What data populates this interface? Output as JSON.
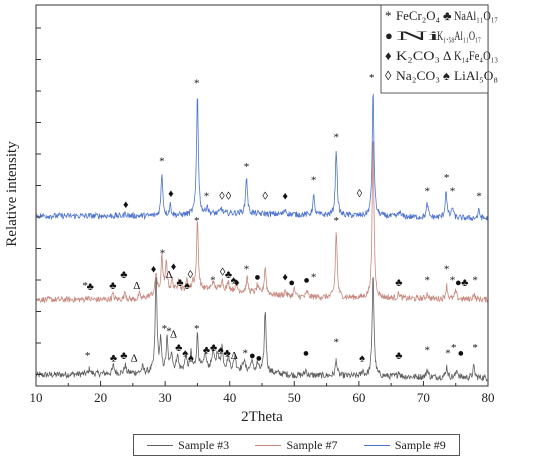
{
  "chart_data": {
    "type": "line",
    "xlabel": "2Theta",
    "ylabel": "Relative intensity",
    "xlim": [
      10,
      80
    ],
    "x_ticks": [
      10,
      20,
      30,
      40,
      50,
      60,
      70,
      80
    ],
    "y_ticks_shown": false,
    "grid": false,
    "series": [
      {
        "name": "Sample #3",
        "color": "#5f5f5f",
        "baseline": 0.05,
        "noise": 0.012,
        "background": [
          [
            10,
            0.04
          ],
          [
            28,
            0.05
          ],
          [
            38,
            0.07
          ],
          [
            50,
            0.04
          ],
          [
            80,
            0.03
          ]
        ],
        "peaks": [
          [
            18.3,
            0.02
          ],
          [
            22.0,
            0.03
          ],
          [
            23.8,
            0.03
          ],
          [
            26.5,
            0.02
          ],
          [
            28.6,
            0.36
          ],
          [
            29.3,
            0.11
          ],
          [
            30.3,
            0.12
          ],
          [
            31.0,
            0.07
          ],
          [
            31.9,
            0.06
          ],
          [
            33.2,
            0.05
          ],
          [
            34.0,
            0.06
          ],
          [
            35.0,
            0.13
          ],
          [
            36.2,
            0.06
          ],
          [
            37.4,
            0.07
          ],
          [
            38.1,
            0.06
          ],
          [
            38.8,
            0.08
          ],
          [
            39.8,
            0.05
          ],
          [
            40.8,
            0.05
          ],
          [
            42.2,
            0.04
          ],
          [
            43.4,
            0.04
          ],
          [
            44.3,
            0.03
          ],
          [
            45.5,
            0.23
          ],
          [
            51.8,
            0.02
          ],
          [
            56.5,
            0.06
          ],
          [
            60.6,
            0.02
          ],
          [
            62.2,
            0.39
          ],
          [
            66.2,
            0.02
          ],
          [
            70.6,
            0.03
          ],
          [
            73.6,
            0.04
          ],
          [
            75.2,
            0.03
          ],
          [
            77.8,
            0.04
          ]
        ]
      },
      {
        "name": "Sample #7",
        "color": "#c7897f",
        "baseline": 0.32,
        "noise": 0.011,
        "background": [
          [
            10,
            0.32
          ],
          [
            26,
            0.32
          ],
          [
            30,
            0.35
          ],
          [
            38,
            0.36
          ],
          [
            50,
            0.33
          ],
          [
            80,
            0.32
          ]
        ],
        "peaks": [
          [
            17.9,
            0.01
          ],
          [
            21.9,
            0.02
          ],
          [
            23.8,
            0.03
          ],
          [
            26.0,
            0.02
          ],
          [
            28.6,
            0.08
          ],
          [
            29.5,
            0.13
          ],
          [
            30.2,
            0.11
          ],
          [
            31.1,
            0.04
          ],
          [
            32.1,
            0.05
          ],
          [
            33.4,
            0.04
          ],
          [
            34.3,
            0.03
          ],
          [
            35.0,
            0.26
          ],
          [
            37.4,
            0.03
          ],
          [
            38.8,
            0.04
          ],
          [
            39.8,
            0.03
          ],
          [
            41.0,
            0.03
          ],
          [
            42.7,
            0.05
          ],
          [
            44.3,
            0.03
          ],
          [
            45.5,
            0.1
          ],
          [
            48.6,
            0.02
          ],
          [
            50.0,
            0.03
          ],
          [
            52.0,
            0.02
          ],
          [
            56.5,
            0.25
          ],
          [
            62.2,
            0.61
          ],
          [
            66.2,
            0.02
          ],
          [
            70.6,
            0.02
          ],
          [
            73.6,
            0.05
          ],
          [
            75.0,
            0.03
          ],
          [
            77.8,
            0.02
          ]
        ]
      },
      {
        "name": "Sample #9",
        "color": "#4f74cf",
        "baseline": 0.63,
        "noise": 0.011,
        "background": [
          [
            10,
            0.63
          ],
          [
            30,
            0.63
          ],
          [
            40,
            0.64
          ],
          [
            60,
            0.63
          ],
          [
            80,
            0.62
          ]
        ],
        "peaks": [
          [
            23.9,
            0.01
          ],
          [
            29.5,
            0.16
          ],
          [
            30.8,
            0.04
          ],
          [
            35.0,
            0.46
          ],
          [
            36.5,
            0.03
          ],
          [
            38.7,
            0.02
          ],
          [
            42.6,
            0.14
          ],
          [
            48.6,
            0.02
          ],
          [
            53.0,
            0.07
          ],
          [
            56.5,
            0.25
          ],
          [
            62.2,
            0.47
          ],
          [
            66.3,
            0.02
          ],
          [
            70.6,
            0.05
          ],
          [
            73.5,
            0.1
          ],
          [
            74.5,
            0.04
          ],
          [
            78.6,
            0.03
          ]
        ]
      }
    ],
    "annotations": [
      {
        "symbol": "*",
        "x": 18.0,
        "series": "Sample #3",
        "level": 0.1
      },
      {
        "symbol": "♣",
        "x": 22.0,
        "series": "Sample #3",
        "level": 0.09
      },
      {
        "symbol": "♣",
        "x": 23.6,
        "series": "Sample #3",
        "level": 0.1
      },
      {
        "symbol": "Δ",
        "x": 25.2,
        "series": "Sample #3",
        "level": 0.09
      },
      {
        "symbol": "*",
        "x": 29.9,
        "series": "Sample #3",
        "level": 0.2
      },
      {
        "symbol": "*",
        "x": 30.6,
        "series": "Sample #3",
        "level": 0.19
      },
      {
        "symbol": "Δ",
        "x": 31.3,
        "series": "Sample #3",
        "level": 0.18
      },
      {
        "symbol": "♣",
        "x": 32.1,
        "series": "Sample #3",
        "level": 0.13
      },
      {
        "symbol": "♠",
        "x": 33.1,
        "series": "Sample #3",
        "level": 0.11
      },
      {
        "symbol": "♠",
        "x": 34.0,
        "series": "Sample #3",
        "level": 0.09
      },
      {
        "symbol": "*",
        "x": 34.9,
        "series": "Sample #3",
        "level": 0.2
      },
      {
        "symbol": "♣",
        "x": 36.4,
        "series": "Sample #3",
        "level": 0.12
      },
      {
        "symbol": "♣",
        "x": 37.5,
        "series": "Sample #3",
        "level": 0.13
      },
      {
        "symbol": "♠",
        "x": 38.6,
        "series": "Sample #3",
        "level": 0.12
      },
      {
        "symbol": "♣",
        "x": 39.6,
        "series": "Sample #3",
        "level": 0.11
      },
      {
        "symbol": "Δ",
        "x": 40.7,
        "series": "Sample #3",
        "level": 0.1
      },
      {
        "symbol": "*",
        "x": 42.4,
        "series": "Sample #3",
        "level": 0.11
      },
      {
        "symbol": "●",
        "x": 43.5,
        "series": "Sample #3",
        "level": 0.1
      },
      {
        "symbol": "●",
        "x": 44.5,
        "series": "Sample #3",
        "level": 0.09
      },
      {
        "symbol": "●",
        "x": 51.8,
        "series": "Sample #3",
        "level": 0.11
      },
      {
        "symbol": "*",
        "x": 56.5,
        "series": "Sample #3",
        "level": 0.15
      },
      {
        "symbol": "♠",
        "x": 60.5,
        "series": "Sample #3",
        "level": 0.09
      },
      {
        "symbol": "♣",
        "x": 66.2,
        "series": "Sample #3",
        "level": 0.1
      },
      {
        "symbol": "*",
        "x": 70.6,
        "series": "Sample #3",
        "level": 0.12
      },
      {
        "symbol": "*",
        "x": 73.8,
        "series": "Sample #3",
        "level": 0.11
      },
      {
        "symbol": "*",
        "x": 74.7,
        "series": "Sample #3",
        "level": 0.13
      },
      {
        "symbol": "●",
        "x": 75.8,
        "series": "Sample #3",
        "level": 0.11
      },
      {
        "symbol": "*",
        "x": 78.0,
        "series": "Sample #3",
        "level": 0.13
      },
      {
        "symbol": "*",
        "x": 17.6,
        "series": "Sample #7",
        "level": 0.36
      },
      {
        "symbol": "♣",
        "x": 18.4,
        "series": "Sample #7",
        "level": 0.355
      },
      {
        "symbol": "♣",
        "x": 21.9,
        "series": "Sample #7",
        "level": 0.36
      },
      {
        "symbol": "♣",
        "x": 23.6,
        "series": "Sample #7",
        "level": 0.4
      },
      {
        "symbol": "Δ",
        "x": 25.6,
        "series": "Sample #7",
        "level": 0.36
      },
      {
        "symbol": "♦",
        "x": 28.2,
        "series": "Sample #7",
        "level": 0.42
      },
      {
        "symbol": "*",
        "x": 29.6,
        "series": "Sample #7",
        "level": 0.48
      },
      {
        "symbol": "Δ",
        "x": 30.6,
        "series": "Sample #7",
        "level": 0.4
      },
      {
        "symbol": "♦",
        "x": 31.3,
        "series": "Sample #7",
        "level": 0.43
      },
      {
        "symbol": "♣",
        "x": 32.3,
        "series": "Sample #7",
        "level": 0.37
      },
      {
        "symbol": "♠",
        "x": 33.4,
        "series": "Sample #7",
        "level": 0.36
      },
      {
        "symbol": "◊",
        "x": 33.9,
        "series": "Sample #7",
        "level": 0.4
      },
      {
        "symbol": "*",
        "x": 34.9,
        "series": "Sample #7",
        "level": 0.6
      },
      {
        "symbol": "*",
        "x": 37.4,
        "series": "Sample #7",
        "level": 0.38
      },
      {
        "symbol": "◊",
        "x": 38.9,
        "series": "Sample #7",
        "level": 0.41
      },
      {
        "symbol": "♣",
        "x": 39.8,
        "series": "Sample #7",
        "level": 0.4
      },
      {
        "symbol": "♠",
        "x": 40.6,
        "series": "Sample #7",
        "level": 0.38
      },
      {
        "symbol": "♦",
        "x": 41.1,
        "series": "Sample #7",
        "level": 0.37
      },
      {
        "symbol": "*",
        "x": 42.6,
        "series": "Sample #7",
        "level": 0.42
      },
      {
        "symbol": "●",
        "x": 44.3,
        "series": "Sample #7",
        "level": 0.39
      },
      {
        "symbol": "♦",
        "x": 48.6,
        "series": "Sample #7",
        "level": 0.39
      },
      {
        "symbol": "●",
        "x": 49.6,
        "series": "Sample #7",
        "level": 0.37
      },
      {
        "symbol": "●",
        "x": 51.9,
        "series": "Sample #7",
        "level": 0.38
      },
      {
        "symbol": "*",
        "x": 53.0,
        "series": "Sample #7",
        "level": 0.39
      },
      {
        "symbol": "*",
        "x": 56.5,
        "series": "Sample #7",
        "level": 0.6
      },
      {
        "symbol": "♣",
        "x": 66.2,
        "series": "Sample #7",
        "level": 0.37
      },
      {
        "symbol": "*",
        "x": 70.6,
        "series": "Sample #7",
        "level": 0.38
      },
      {
        "symbol": "*",
        "x": 73.6,
        "series": "Sample #7",
        "level": 0.42
      },
      {
        "symbol": "*",
        "x": 74.5,
        "series": "Sample #7",
        "level": 0.38
      },
      {
        "symbol": "●",
        "x": 75.4,
        "series": "Sample #7",
        "level": 0.37
      },
      {
        "symbol": "♣",
        "x": 76.4,
        "series": "Sample #7",
        "level": 0.37
      },
      {
        "symbol": "*",
        "x": 78.0,
        "series": "Sample #7",
        "level": 0.38
      },
      {
        "symbol": "♦",
        "x": 23.9,
        "series": "Sample #9",
        "level": 0.66
      },
      {
        "symbol": "*",
        "x": 29.5,
        "series": "Sample #9",
        "level": 0.82
      },
      {
        "symbol": "♦",
        "x": 30.9,
        "series": "Sample #9",
        "level": 0.7
      },
      {
        "symbol": "*",
        "x": 34.9,
        "series": "Sample #9",
        "level": 1.11
      },
      {
        "symbol": "*",
        "x": 36.4,
        "series": "Sample #9",
        "level": 0.69
      },
      {
        "symbol": "◊",
        "x": 38.8,
        "series": "Sample #9",
        "level": 0.69
      },
      {
        "symbol": "◊",
        "x": 39.8,
        "series": "Sample #9",
        "level": 0.69
      },
      {
        "symbol": "*",
        "x": 42.6,
        "series": "Sample #9",
        "level": 0.8
      },
      {
        "symbol": "◊",
        "x": 45.5,
        "series": "Sample #9",
        "level": 0.69
      },
      {
        "symbol": "♦",
        "x": 48.6,
        "series": "Sample #9",
        "level": 0.69
      },
      {
        "symbol": "*",
        "x": 53.0,
        "series": "Sample #9",
        "level": 0.75
      },
      {
        "symbol": "*",
        "x": 56.5,
        "series": "Sample #9",
        "level": 0.91
      },
      {
        "symbol": "◊",
        "x": 60.1,
        "series": "Sample #9",
        "level": 0.7
      },
      {
        "symbol": "*",
        "x": 62.0,
        "series": "Sample #9",
        "level": 1.13
      },
      {
        "symbol": "*",
        "x": 70.6,
        "series": "Sample #9",
        "level": 0.71
      },
      {
        "symbol": "*",
        "x": 73.6,
        "series": "Sample #9",
        "level": 0.76
      },
      {
        "symbol": "*",
        "x": 74.5,
        "series": "Sample #9",
        "level": 0.71
      },
      {
        "symbol": "*",
        "x": 78.6,
        "series": "Sample #9",
        "level": 0.69
      }
    ]
  },
  "phase_legend": [
    {
      "symbol": "*",
      "label": "FeCr₂O₄"
    },
    {
      "symbol": "♣",
      "label": "NaAl₁₁O₁₇"
    },
    {
      "symbol": "●",
      "label": "Ni"
    },
    {
      "symbol": "",
      "label": "K₁.₅₈Al₁₁O₁₇"
    },
    {
      "symbol": "♦",
      "label": "K₂CO₃"
    },
    {
      "symbol": "Δ",
      "label": "K₁₄Fe₄O₁₃"
    },
    {
      "symbol": "◊",
      "label": "Na₂CO₃"
    },
    {
      "symbol": "♠",
      "label": "LiAl₅O₈"
    }
  ],
  "bottom_legend": [
    {
      "label": "Sample #3",
      "color": "#5f5f5f"
    },
    {
      "label": "Sample #7",
      "color": "#c7897f"
    },
    {
      "label": "Sample #9",
      "color": "#4f74cf"
    }
  ]
}
